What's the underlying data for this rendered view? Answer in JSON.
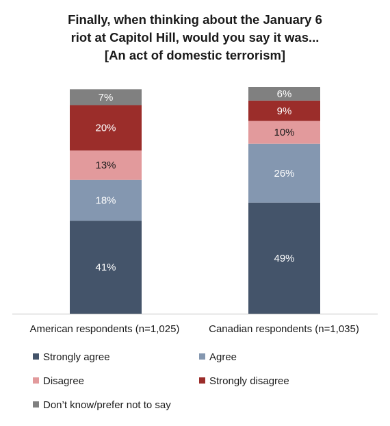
{
  "title_lines": [
    "Finally, when thinking about the January 6",
    "riot at Capitol Hill, would you say it was...",
    "[An act of domestic terrorism]"
  ],
  "chart_data": {
    "type": "bar",
    "stacked": true,
    "categories": [
      "American respondents (n=1,025)",
      "Canadian respondents (n=1,035)"
    ],
    "series": [
      {
        "name": "Strongly agree",
        "values": [
          41,
          49
        ],
        "labels": [
          "41%",
          "49%"
        ],
        "color": "#44546A",
        "label_color": "#ffffff"
      },
      {
        "name": "Agree",
        "values": [
          18,
          26
        ],
        "labels": [
          "18%",
          "26%"
        ],
        "color": "#8497B0",
        "label_color": "#ffffff"
      },
      {
        "name": "Disagree",
        "values": [
          13,
          10
        ],
        "labels": [
          "13%",
          "10%"
        ],
        "color": "#E29A9C",
        "label_color": "#1a1a1a"
      },
      {
        "name": "Strongly disagree",
        "values": [
          20,
          9
        ],
        "labels": [
          "20%",
          "9%"
        ],
        "color": "#9B2D2A",
        "label_color": "#ffffff"
      },
      {
        "name": "Don’t know/prefer not to say",
        "values": [
          7,
          6
        ],
        "labels": [
          "7%",
          "6%"
        ],
        "color": "#808080",
        "label_color": "#ffffff"
      }
    ],
    "ylim": [
      0,
      100
    ],
    "grid": false,
    "legend_position": "bottom"
  }
}
